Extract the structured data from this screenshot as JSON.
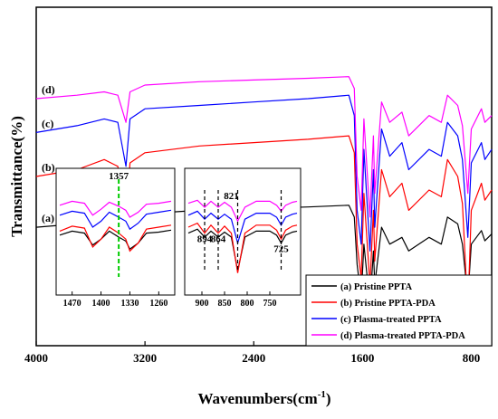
{
  "chart_data": {
    "type": "line",
    "title": "",
    "xlabel": "Wavenumbers(cm",
    "xlabel_sup": "-1",
    "xlabel_close": ")",
    "ylabel": "Transmittance(%)",
    "x_axis_reversed": true,
    "xlim": [
      4000,
      650
    ],
    "xticks": [
      4000,
      3200,
      2400,
      1600,
      800
    ],
    "y_ticks_shown": false,
    "grid": false,
    "legend_position": "bottom-right",
    "colors": {
      "a": "#000000",
      "b": "#ff0000",
      "c": "#0000ff",
      "d": "#ff00ff",
      "guide": "#00cc00"
    },
    "series": [
      {
        "id": "a",
        "name": "(a) Pristine PPTA",
        "label": "(a)",
        "color": "#000000",
        "points": [
          [
            4000,
            35
          ],
          [
            3700,
            36
          ],
          [
            3500,
            38
          ],
          [
            3400,
            37
          ],
          [
            3340,
            22
          ],
          [
            3310,
            37
          ],
          [
            3200,
            39
          ],
          [
            2800,
            40
          ],
          [
            2400,
            40.5
          ],
          [
            2000,
            41
          ],
          [
            1700,
            41.5
          ],
          [
            1660,
            38
          ],
          [
            1640,
            24
          ],
          [
            1610,
            14
          ],
          [
            1590,
            30
          ],
          [
            1545,
            12
          ],
          [
            1520,
            28
          ],
          [
            1510,
            18
          ],
          [
            1460,
            35
          ],
          [
            1400,
            30
          ],
          [
            1310,
            32
          ],
          [
            1260,
            28
          ],
          [
            1110,
            32
          ],
          [
            1020,
            30
          ],
          [
            975,
            38
          ],
          [
            900,
            36
          ],
          [
            865,
            30
          ],
          [
            825,
            14
          ],
          [
            800,
            30
          ],
          [
            725,
            34
          ],
          [
            700,
            31
          ],
          [
            650,
            33
          ]
        ]
      },
      {
        "id": "b",
        "name": "(b) Pristine PPTA-PDA",
        "label": "(b)",
        "color": "#ff0000",
        "points": [
          [
            4000,
            50
          ],
          [
            3700,
            52
          ],
          [
            3500,
            55
          ],
          [
            3400,
            53
          ],
          [
            3340,
            38
          ],
          [
            3310,
            54
          ],
          [
            3200,
            57
          ],
          [
            2800,
            59
          ],
          [
            2400,
            60
          ],
          [
            2000,
            61
          ],
          [
            1700,
            62
          ],
          [
            1660,
            57
          ],
          [
            1640,
            30
          ],
          [
            1610,
            20
          ],
          [
            1590,
            45
          ],
          [
            1545,
            18
          ],
          [
            1520,
            40
          ],
          [
            1510,
            25
          ],
          [
            1460,
            52
          ],
          [
            1400,
            44
          ],
          [
            1310,
            48
          ],
          [
            1260,
            40
          ],
          [
            1110,
            46
          ],
          [
            1020,
            44
          ],
          [
            975,
            55
          ],
          [
            900,
            50
          ],
          [
            865,
            42
          ],
          [
            825,
            10
          ],
          [
            800,
            40
          ],
          [
            725,
            48
          ],
          [
            700,
            43
          ],
          [
            650,
            46
          ]
        ]
      },
      {
        "id": "c",
        "name": "(c) Plasma-treated PPTA",
        "label": "(c)",
        "color": "#0000ff",
        "points": [
          [
            4000,
            63
          ],
          [
            3700,
            65
          ],
          [
            3500,
            67
          ],
          [
            3400,
            66
          ],
          [
            3340,
            53
          ],
          [
            3310,
            67
          ],
          [
            3200,
            70
          ],
          [
            2800,
            71
          ],
          [
            2400,
            72
          ],
          [
            2000,
            73
          ],
          [
            1700,
            74
          ],
          [
            1660,
            68
          ],
          [
            1640,
            40
          ],
          [
            1610,
            30
          ],
          [
            1590,
            58
          ],
          [
            1545,
            28
          ],
          [
            1520,
            52
          ],
          [
            1510,
            35
          ],
          [
            1460,
            64
          ],
          [
            1400,
            56
          ],
          [
            1310,
            60
          ],
          [
            1260,
            52
          ],
          [
            1110,
            58
          ],
          [
            1020,
            56
          ],
          [
            975,
            66
          ],
          [
            900,
            62
          ],
          [
            865,
            55
          ],
          [
            825,
            32
          ],
          [
            800,
            54
          ],
          [
            725,
            60
          ],
          [
            700,
            55
          ],
          [
            650,
            58
          ]
        ]
      },
      {
        "id": "d",
        "name": "(d) Plasma-treated PPTA-PDA",
        "label": "(d)",
        "color": "#ff00ff",
        "points": [
          [
            4000,
            73
          ],
          [
            3700,
            74
          ],
          [
            3500,
            75
          ],
          [
            3400,
            74
          ],
          [
            3340,
            66
          ],
          [
            3310,
            75
          ],
          [
            3200,
            77
          ],
          [
            2800,
            78
          ],
          [
            2400,
            78.5
          ],
          [
            2000,
            79
          ],
          [
            1700,
            79.5
          ],
          [
            1660,
            76
          ],
          [
            1640,
            50
          ],
          [
            1610,
            40
          ],
          [
            1590,
            67
          ],
          [
            1545,
            38
          ],
          [
            1520,
            62
          ],
          [
            1510,
            45
          ],
          [
            1460,
            72
          ],
          [
            1400,
            66
          ],
          [
            1310,
            69
          ],
          [
            1260,
            62
          ],
          [
            1110,
            68
          ],
          [
            1020,
            66
          ],
          [
            975,
            74
          ],
          [
            900,
            71
          ],
          [
            865,
            65
          ],
          [
            825,
            45
          ],
          [
            800,
            64
          ],
          [
            725,
            70
          ],
          [
            700,
            66
          ],
          [
            650,
            68
          ]
        ]
      }
    ],
    "insets": [
      {
        "id": "inset-1",
        "xlim": [
          1500,
          1230
        ],
        "xticks": [
          1470,
          1400,
          1330,
          1260
        ],
        "guide_line": 1357,
        "guide_label": "1357",
        "series": [
          {
            "id": "a",
            "points": [
              [
                1500,
                42
              ],
              [
                1470,
                46
              ],
              [
                1440,
                44
              ],
              [
                1420,
                32
              ],
              [
                1400,
                38
              ],
              [
                1380,
                46
              ],
              [
                1357,
                40
              ],
              [
                1340,
                36
              ],
              [
                1330,
                28
              ],
              [
                1310,
                34
              ],
              [
                1290,
                44
              ],
              [
                1260,
                45
              ],
              [
                1230,
                47
              ]
            ]
          },
          {
            "id": "b",
            "points": [
              [
                1500,
                46
              ],
              [
                1470,
                51
              ],
              [
                1440,
                49
              ],
              [
                1420,
                30
              ],
              [
                1400,
                38
              ],
              [
                1380,
                50
              ],
              [
                1357,
                44
              ],
              [
                1340,
                38
              ],
              [
                1330,
                26
              ],
              [
                1310,
                34
              ],
              [
                1290,
                48
              ],
              [
                1260,
                50
              ],
              [
                1230,
                52
              ]
            ]
          },
          {
            "id": "c",
            "points": [
              [
                1500,
                62
              ],
              [
                1470,
                66
              ],
              [
                1440,
                64
              ],
              [
                1420,
                50
              ],
              [
                1400,
                56
              ],
              [
                1380,
                65
              ],
              [
                1357,
                60
              ],
              [
                1340,
                56
              ],
              [
                1330,
                48
              ],
              [
                1310,
                54
              ],
              [
                1290,
                63
              ],
              [
                1260,
                65
              ],
              [
                1230,
                67
              ]
            ]
          },
          {
            "id": "d",
            "points": [
              [
                1500,
                72
              ],
              [
                1470,
                76
              ],
              [
                1440,
                74
              ],
              [
                1420,
                62
              ],
              [
                1400,
                68
              ],
              [
                1380,
                75
              ],
              [
                1357,
                71
              ],
              [
                1340,
                67
              ],
              [
                1330,
                60
              ],
              [
                1310,
                65
              ],
              [
                1290,
                73
              ],
              [
                1260,
                74
              ],
              [
                1230,
                76
              ]
            ]
          }
        ]
      },
      {
        "id": "inset-2",
        "xlim": [
          930,
          690
        ],
        "xticks": [
          900,
          850,
          800,
          750
        ],
        "guide_lines": [
          894,
          864,
          821,
          725
        ],
        "labels": [
          {
            "text": "894",
            "x": 894,
            "y": 35
          },
          {
            "text": "864",
            "x": 864,
            "y": 35
          },
          {
            "text": "821",
            "x": 835,
            "y": 78
          },
          {
            "text": "725",
            "x": 725,
            "y": 25
          }
        ],
        "series": [
          {
            "id": "a",
            "points": [
              [
                930,
                44
              ],
              [
                910,
                48
              ],
              [
                894,
                40
              ],
              [
                880,
                46
              ],
              [
                864,
                40
              ],
              [
                850,
                45
              ],
              [
                835,
                40
              ],
              [
                821,
                6
              ],
              [
                805,
                40
              ],
              [
                780,
                46
              ],
              [
                750,
                46
              ],
              [
                735,
                42
              ],
              [
                725,
                34
              ],
              [
                715,
                42
              ],
              [
                700,
                45
              ],
              [
                690,
                46
              ]
            ]
          },
          {
            "id": "b",
            "points": [
              [
                930,
                50
              ],
              [
                910,
                54
              ],
              [
                894,
                44
              ],
              [
                880,
                52
              ],
              [
                864,
                44
              ],
              [
                850,
                51
              ],
              [
                835,
                44
              ],
              [
                821,
                4
              ],
              [
                805,
                44
              ],
              [
                780,
                52
              ],
              [
                750,
                52
              ],
              [
                735,
                47
              ],
              [
                725,
                38
              ],
              [
                715,
                47
              ],
              [
                700,
                51
              ],
              [
                690,
                52
              ]
            ]
          },
          {
            "id": "c",
            "points": [
              [
                930,
                62
              ],
              [
                910,
                66
              ],
              [
                894,
                58
              ],
              [
                880,
                64
              ],
              [
                864,
                58
              ],
              [
                850,
                63
              ],
              [
                835,
                58
              ],
              [
                821,
                34
              ],
              [
                805,
                58
              ],
              [
                780,
                64
              ],
              [
                750,
                64
              ],
              [
                735,
                60
              ],
              [
                725,
                52
              ],
              [
                715,
                60
              ],
              [
                700,
                63
              ],
              [
                690,
                64
              ]
            ]
          },
          {
            "id": "d",
            "points": [
              [
                930,
                74
              ],
              [
                910,
                77
              ],
              [
                894,
                70
              ],
              [
                880,
                76
              ],
              [
                864,
                70
              ],
              [
                850,
                75
              ],
              [
                835,
                70
              ],
              [
                821,
                56
              ],
              [
                805,
                70
              ],
              [
                780,
                76
              ],
              [
                750,
                76
              ],
              [
                735,
                72
              ],
              [
                725,
                66
              ],
              [
                715,
                72
              ],
              [
                700,
                75
              ],
              [
                690,
                76
              ]
            ]
          }
        ]
      }
    ],
    "legend": [
      {
        "id": "a",
        "text": "(a) Pristine PPTA",
        "color": "#000000"
      },
      {
        "id": "b",
        "text": "(b) Pristine PPTA-PDA",
        "color": "#ff0000"
      },
      {
        "id": "c",
        "text": "(c) Plasma-treated PPTA",
        "color": "#0000ff"
      },
      {
        "id": "d",
        "text": "(d) Plasma-treated PPTA-PDA",
        "color": "#ff00ff"
      }
    ]
  }
}
